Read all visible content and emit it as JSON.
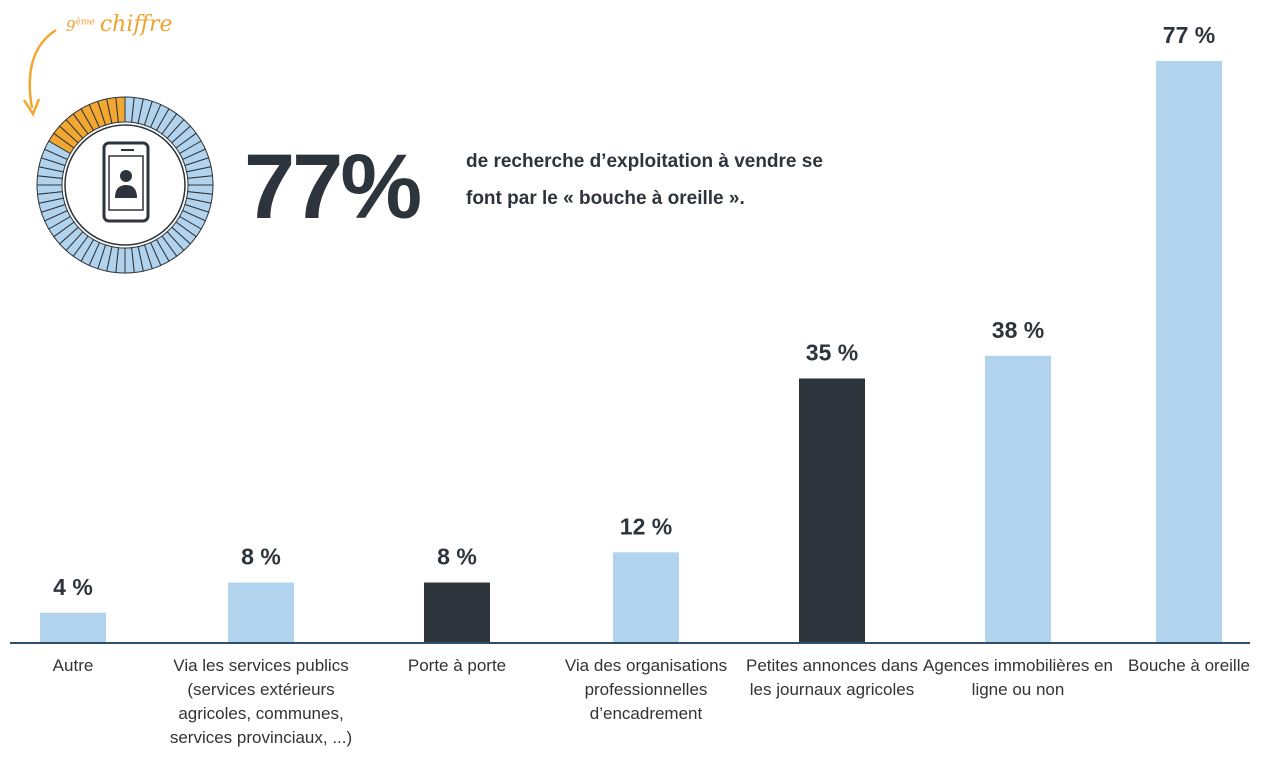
{
  "chart_data": {
    "type": "bar",
    "headline": "77%",
    "headline_text": "de recherche d’exploitation à vendre se font par le « bouche à oreille ».",
    "badge": {
      "number": "9",
      "suffix": "ème",
      "word": "chiffre"
    },
    "categories": [
      "Autre",
      "Via les services publics (services extérieurs agricoles, communes, services provinciaux, ...)",
      "Porte à porte",
      "Via des organisations professionnelles d’encadrement",
      "Petites annonces dans les journaux agricoles",
      "Agences immobilières en ligne ou non",
      "Bouche à oreille"
    ],
    "values": [
      4,
      8,
      8,
      12,
      35,
      38,
      77
    ],
    "value_labels": [
      "4 %",
      "8 %",
      "8 %",
      "12 %",
      "35 %",
      "38 %",
      "77 %"
    ],
    "colors": [
      "#b1d3ed",
      "#b1d3ed",
      "#2e343b",
      "#b1d3ed",
      "#2e343b",
      "#b1d3ed",
      "#b1d3ed"
    ]
  }
}
